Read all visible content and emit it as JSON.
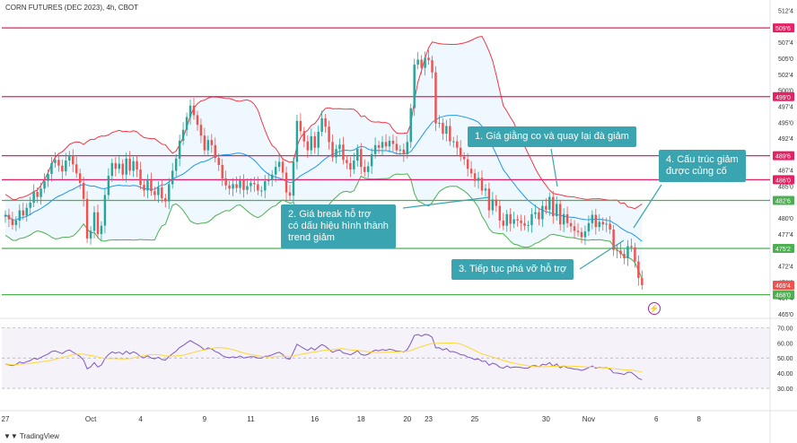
{
  "header": {
    "title": "CORN FUTURES (DEC 2023), 4h, CBOT"
  },
  "footer": {
    "brand": "TradingView"
  },
  "icons": {
    "event_marker": "lightning-icon",
    "logo": "tradingview-logo-icon"
  },
  "callouts": [
    {
      "id": "c1",
      "text": "1. Giá giằng co và quay lại đà giảm"
    },
    {
      "id": "c2",
      "text": "2. Giá break hỗ trợ\ncó dấu hiệu hình thành\ntrend giảm"
    },
    {
      "id": "c3",
      "text": "3. Tiếp tục phá vỡ hỗ trợ"
    },
    {
      "id": "c4",
      "text": "4. Cấu trúc giảm\nđược củng cố"
    }
  ],
  "chart_data": [
    {
      "type": "candlestick",
      "title": "CORN FUTURES (DEC 2023), 4h, CBOT",
      "ylim": [
        465,
        513
      ],
      "y_ticks": [
        465.0,
        467.5,
        470.0,
        472.5,
        475.0,
        477.5,
        480.0,
        482.5,
        485.0,
        487.5,
        490.0,
        492.5,
        495.0,
        497.5,
        500.0,
        502.5,
        505.0,
        507.5,
        510.0,
        512.5
      ],
      "y_tick_labels": [
        "465'0",
        "467'4",
        "470'0",
        "472'4",
        "475'0",
        "477'4",
        "480'0",
        "482'4",
        "485'0",
        "487'4",
        "490'0",
        "492'4",
        "495'0",
        "497'4",
        "500'0",
        "502'4",
        "505'0",
        "507'4",
        "510'0",
        "512'4"
      ],
      "x_ticks": [
        {
          "label": "27",
          "bar": 0
        },
        {
          "label": "Oct",
          "bar": 24
        },
        {
          "label": "4",
          "bar": 38
        },
        {
          "label": "9",
          "bar": 56
        },
        {
          "label": "11",
          "bar": 69
        },
        {
          "label": "16",
          "bar": 87
        },
        {
          "label": "18",
          "bar": 100
        },
        {
          "label": "20",
          "bar": 113
        },
        {
          "label": "23",
          "bar": 119
        },
        {
          "label": "25",
          "bar": 132
        },
        {
          "label": "30",
          "bar": 152
        },
        {
          "label": "Nov",
          "bar": 164
        },
        {
          "label": "6",
          "bar": 183
        },
        {
          "label": "8",
          "bar": 195
        }
      ],
      "x_range": [
        -1,
        215
      ],
      "price_labels": [
        {
          "value": 509.75,
          "text": "509'6",
          "color": "#e91e63"
        },
        {
          "value": 499.0,
          "text": "499'0",
          "color": "#e91e63"
        },
        {
          "value": 489.75,
          "text": "489'6",
          "color": "#e91e63"
        },
        {
          "value": 486.0,
          "text": "486'0",
          "color": "#e91e63"
        },
        {
          "value": 482.75,
          "text": "482'6",
          "color": "#4caf50"
        },
        {
          "value": 475.25,
          "text": "475'2",
          "color": "#4caf50"
        },
        {
          "value": 469.5,
          "text": "469'4",
          "color": "#ef5350"
        },
        {
          "value": 468.0,
          "text": "468'0",
          "color": "#4caf50"
        }
      ],
      "horizontal_levels": [
        {
          "value": 509.75,
          "color": "#e91e63",
          "role": "resistance"
        },
        {
          "value": 499.0,
          "color": "#e91e63",
          "role": "resistance"
        },
        {
          "value": 489.75,
          "color": "#e91e63",
          "role": "resistance"
        },
        {
          "value": 486.0,
          "color": "#e91e63",
          "role": "resistance"
        },
        {
          "value": 482.75,
          "color": "#4caf50",
          "role": "support"
        },
        {
          "value": 475.25,
          "color": "#4caf50",
          "role": "support"
        },
        {
          "value": 468.0,
          "color": "#4caf50",
          "role": "support"
        }
      ],
      "close": [
        480.5,
        479.8,
        478.9,
        479.6,
        481.2,
        480.4,
        481.6,
        482.4,
        484.1,
        483.3,
        484.6,
        485.8,
        486.9,
        488.6,
        489.1,
        488.2,
        487.3,
        489.0,
        489.8,
        488.4,
        487.0,
        485.5,
        483.0,
        476.8,
        478.0,
        480.9,
        477.5,
        478.8,
        483.6,
        486.6,
        488.6,
        487.7,
        488.5,
        486.8,
        489.3,
        487.4,
        488.9,
        487.6,
        485.2,
        484.3,
        485.9,
        484.2,
        483.6,
        484.8,
        483.1,
        482.6,
        485.3,
        487.4,
        489.3,
        492.1,
        493.8,
        495.8,
        497.6,
        496.1,
        494.6,
        492.9,
        490.6,
        492.2,
        491.4,
        489.4,
        488.3,
        486.2,
        485.1,
        484.6,
        485.3,
        484.7,
        485.9,
        484.4,
        485.0,
        485.5,
        485.3,
        484.3,
        484.3,
        485.8,
        485.9,
        486.8,
        488.0,
        488.8,
        487.1,
        484.0,
        483.5,
        488.8,
        495.2,
        493.6,
        492.0,
        490.6,
        492.8,
        491.0,
        493.5,
        495.6,
        494.3,
        491.9,
        489.5,
        490.8,
        491.5,
        489.1,
        488.6,
        487.6,
        489.0,
        490.8,
        488.0,
        487.2,
        488.1,
        490.0,
        491.4,
        491.0,
        491.9,
        491.2,
        492.1,
        491.6,
        490.6,
        490.7,
        490.0,
        491.9,
        497.2,
        504.0,
        504.8,
        503.5,
        505.1,
        504.7,
        502.8,
        494.8,
        494.9,
        493.2,
        494.4,
        492.0,
        492.0,
        491.0,
        489.6,
        489.2,
        487.7,
        487.0,
        485.8,
        486.3,
        484.3,
        484.6,
        481.2,
        482.9,
        481.9,
        479.6,
        478.8,
        480.6,
        479.1,
        479.8,
        479.6,
        479.2,
        478.8,
        478.9,
        480.6,
        480.9,
        479.8,
        481.9,
        481.3,
        483.3,
        480.3,
        482.2,
        479.0,
        480.6,
        479.2,
        478.7,
        478.0,
        477.8,
        477.0,
        477.9,
        479.2,
        480.5,
        478.6,
        479.4,
        479.0,
        479.1,
        478.2,
        475.0,
        474.9,
        474.4,
        473.7,
        475.6,
        475.4,
        473.2,
        470.6,
        469.5
      ],
      "bollinger_basis_color": "#2196f3",
      "bollinger_band_color": "#4caf50",
      "bollinger_upper_color": "#f23645",
      "bollinger_fill": "rgba(33,150,243,0.07)",
      "rsi": {
        "ylim": [
          20,
          72
        ],
        "y_ticks": [
          30,
          40,
          50,
          60,
          70
        ],
        "y_tick_labels": [
          "30.00",
          "40.00",
          "50.00",
          "60.00",
          "70.00"
        ],
        "upper": 70,
        "lower": 30,
        "line_color": "#7e57c2",
        "signal_color": "#fdd835",
        "values": [
          46.0,
          45.5,
          45.0,
          45.7,
          47.4,
          46.6,
          47.6,
          48.3,
          49.9,
          49.2,
          50.4,
          51.6,
          52.6,
          54.3,
          54.7,
          53.8,
          52.9,
          54.6,
          55.3,
          53.9,
          52.5,
          51.0,
          48.6,
          42.9,
          44.2,
          47.0,
          44.0,
          45.4,
          49.7,
          52.3,
          54.0,
          53.2,
          53.9,
          52.4,
          54.5,
          52.8,
          54.1,
          53.0,
          50.9,
          50.1,
          51.5,
          50.0,
          49.5,
          50.5,
          49.0,
          48.6,
          51.0,
          52.8,
          54.5,
          56.9,
          58.3,
          60.0,
          61.5,
          60.1,
          58.8,
          57.3,
          55.3,
          56.7,
          56.0,
          54.3,
          53.4,
          51.6,
          50.6,
          50.2,
          50.8,
          50.3,
          51.3,
          50.0,
          50.5,
          50.9,
          50.8,
          49.9,
          49.9,
          51.2,
          51.3,
          52.1,
          53.1,
          53.8,
          52.3,
          49.7,
          49.3,
          53.9,
          59.1,
          57.6,
          56.2,
          55.0,
          56.8,
          55.2,
          57.2,
          58.9,
          57.7,
          55.7,
          53.7,
          54.8,
          55.3,
          53.3,
          52.9,
          52.1,
          53.3,
          54.8,
          52.4,
          51.8,
          52.5,
          54.1,
          55.2,
          54.8,
          55.6,
          55.0,
          55.8,
          55.3,
          54.5,
          54.6,
          54.0,
          55.6,
          59.8,
          64.9,
          65.5,
          64.4,
          65.6,
          65.2,
          63.6,
          56.7,
          56.8,
          55.3,
          56.3,
          54.2,
          54.2,
          53.4,
          52.2,
          51.9,
          50.6,
          50.0,
          49.0,
          49.4,
          47.8,
          48.0,
          45.2,
          46.6,
          45.8,
          43.9,
          43.3,
          44.8,
          43.6,
          44.1,
          44.0,
          43.7,
          43.3,
          43.4,
          44.8,
          45.0,
          44.1,
          45.9,
          45.4,
          47.0,
          44.5,
          46.1,
          43.5,
          44.8,
          43.6,
          43.2,
          42.7,
          42.5,
          41.8,
          42.6,
          43.7,
          44.8,
          43.2,
          43.9,
          43.5,
          43.6,
          42.8,
          40.2,
          40.1,
          39.7,
          39.1,
          40.7,
          40.5,
          38.7,
          36.6,
          35.7
        ]
      }
    }
  ]
}
